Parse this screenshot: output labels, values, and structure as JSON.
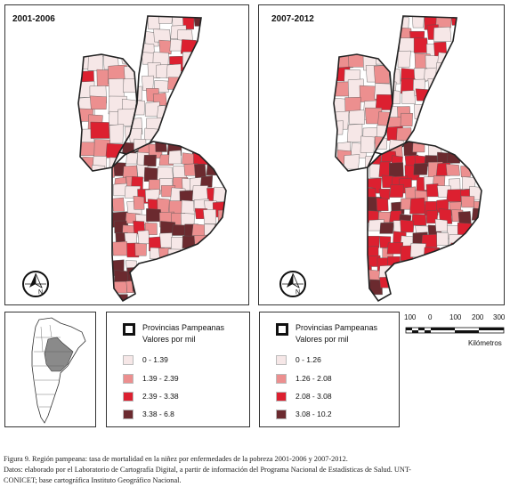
{
  "maps": [
    {
      "title": "2001-2006",
      "legend": {
        "header_line1": "Provincias Pampeanas",
        "header_line2": "Valores por mil",
        "classes": [
          {
            "label": "0 - 1.39",
            "color": "#f6e7e7"
          },
          {
            "label": "1.39 - 2.39",
            "color": "#ec8f8f"
          },
          {
            "label": "2.39 - 3.38",
            "color": "#dc2030"
          },
          {
            "label": "3.38 - 6.8",
            "color": "#6b2a2f"
          }
        ]
      }
    },
    {
      "title": "2007-2012",
      "legend": {
        "header_line1": "Provincias Pampeanas",
        "header_line2": "Valores por mil",
        "classes": [
          {
            "label": "0 - 1.26",
            "color": "#f6e7e7"
          },
          {
            "label": "1.26 - 2.08",
            "color": "#ec8f8f"
          },
          {
            "label": "2.08 - 3.08",
            "color": "#dc2030"
          },
          {
            "label": "3.08 - 10.2",
            "color": "#6b2a2f"
          }
        ]
      }
    }
  ],
  "north_arrow_label": "N",
  "scale": {
    "ticks": [
      "100",
      "0",
      "100",
      "200",
      "300"
    ],
    "unit": "Kilómetros"
  },
  "caption": {
    "line1": "Figura 9. Región pampeana: tasa de mortalidad en la niñez por enfermedades de la pobreza 2001-2006 y 2007-2012.",
    "line2": "Datos: elaborado por el Laboratorio de Cartografía Digital, a partir de información del Programa Nacional de Estadísticas de Salud. UNT-",
    "line3": "CONICET; base cartográfica Instituto Geográfico Nacional."
  },
  "colors": {
    "outline": "#222222",
    "border": "#333333",
    "locator_highlight": "#8a8a8a"
  }
}
